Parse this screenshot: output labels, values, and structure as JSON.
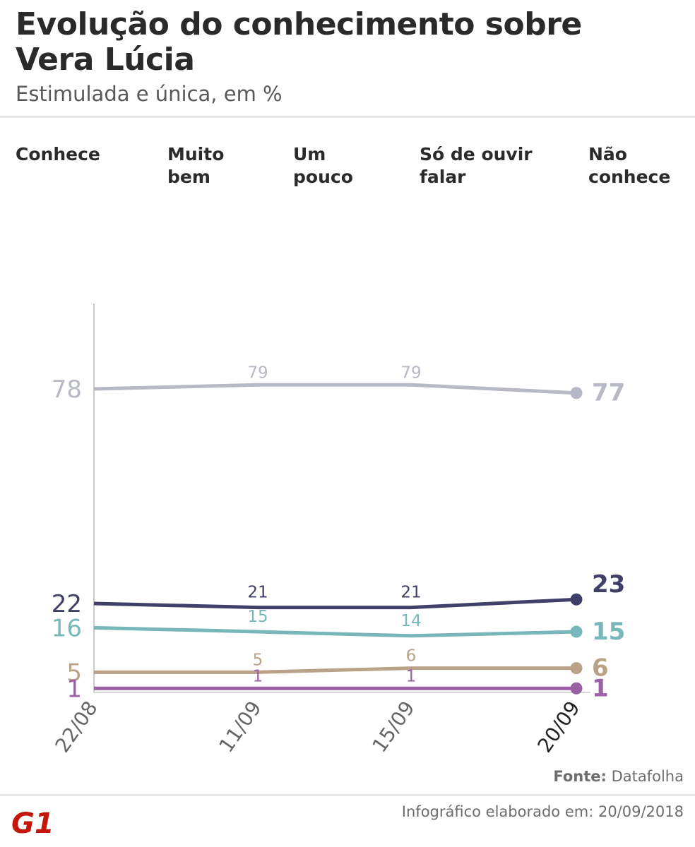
{
  "header": {
    "title": "Evolução do conhecimento sobre Vera Lúcia",
    "subtitle": "Estimulada e única, em %"
  },
  "legend": [
    {
      "label": "Conhece",
      "color": "#3f3f67"
    },
    {
      "label": "Muito bem",
      "color": "#9a62a5"
    },
    {
      "label": "Um pouco",
      "color": "#b9a288"
    },
    {
      "label": "Só de ouvir falar",
      "color": "#78b7b9"
    },
    {
      "label": "Não conhece",
      "color": "#b7b9c4"
    }
  ],
  "chart_data": {
    "type": "line",
    "categories": [
      "22/08",
      "11/09",
      "15/09",
      "20/09"
    ],
    "series": [
      {
        "name": "Não conhece",
        "color": "#b7b9c4",
        "values": [
          78,
          79,
          79,
          77
        ]
      },
      {
        "name": "Conhece",
        "color": "#3f3f67",
        "values": [
          22,
          21,
          21,
          23
        ]
      },
      {
        "name": "Só de ouvir falar",
        "color": "#78b7b9",
        "values": [
          16,
          15,
          14,
          15
        ]
      },
      {
        "name": "Um pouco",
        "color": "#b9a288",
        "values": [
          5,
          5,
          6,
          6
        ]
      },
      {
        "name": "Muito bem",
        "color": "#9a62a5",
        "values": [
          1,
          1,
          1,
          1
        ]
      }
    ],
    "ylim": [
      0,
      100
    ],
    "grid": false
  },
  "footer": {
    "source_label": "Fonte:",
    "source_value": "Datafolha",
    "credit": "Infográfico elaborado em: 20/09/2018",
    "logo_text": "G1",
    "logo_color": "#c4170c"
  }
}
